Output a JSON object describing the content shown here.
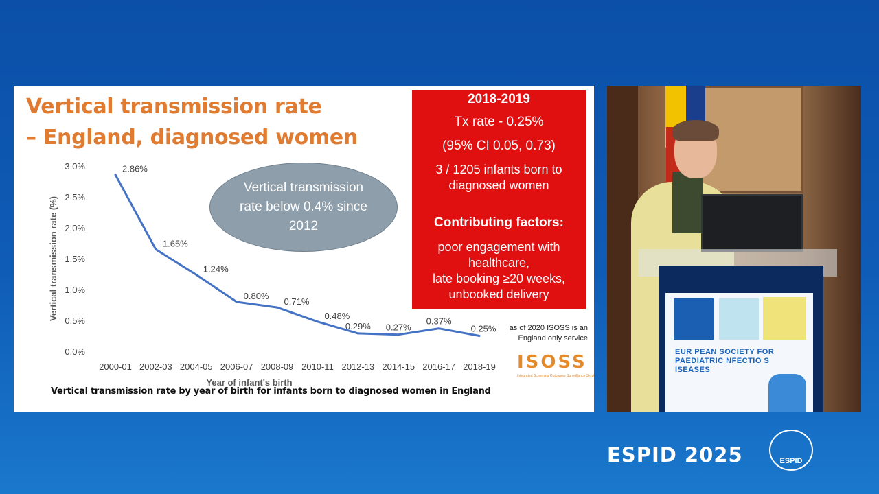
{
  "slide": {
    "title_line1": "Vertical transmission rate",
    "title_line2": "– England, diagnosed women",
    "caption": "Vertical transmission rate by year of birth for infants born to diagnosed women in England",
    "ellipse_text": "Vertical transmission rate below 0.4% since 2012",
    "redbox": {
      "heading": "2018-2019",
      "rate": "Tx rate - 0.25%",
      "ci": "(95% CI 0.05, 0.73)",
      "infants": "3 / 1205 infants born to diagnosed women",
      "factors_heading": "Contributing factors:",
      "factors": [
        "poor engagement with healthcare,",
        "late booking ≥20 weeks,",
        "unbooked delivery"
      ]
    },
    "isoss_note": "as of 2020 ISOSS is an England only service",
    "isoss_logo_text": "ISOSS",
    "isoss_logo_subtitle": "Integrated Screening Outcomes Surveillance Service"
  },
  "chart_data": {
    "type": "line",
    "categories": [
      "2000-01",
      "2002-03",
      "2004-05",
      "2006-07",
      "2008-09",
      "2010-11",
      "2012-13",
      "2014-15",
      "2016-17",
      "2018-19"
    ],
    "values": [
      2.86,
      1.65,
      1.24,
      0.8,
      0.71,
      0.48,
      0.29,
      0.27,
      0.37,
      0.25
    ],
    "data_labels": [
      "2.86%",
      "1.65%",
      "1.24%",
      "0.80%",
      "0.71%",
      "0.48%",
      "0.29%",
      "0.27%",
      "0.37%",
      "0.25%"
    ],
    "y_ticks": [
      "0.0%",
      "0.5%",
      "1.0%",
      "1.5%",
      "2.0%",
      "2.5%",
      "3.0%"
    ],
    "xlabel": "Year of infant's birth",
    "ylabel": "Vertical transmission rate (%)",
    "ylim": [
      0,
      3.0
    ],
    "grid": false,
    "line_color": "#4472c4"
  },
  "video": {
    "poster_text_lines": [
      "EUR PEAN SOCIETY FOR",
      "PAEDIATRIC NFECTIO S",
      "ISEASES"
    ]
  },
  "branding": {
    "espid_text": "ESPID 2025",
    "emblem_text": "ESPID"
  }
}
